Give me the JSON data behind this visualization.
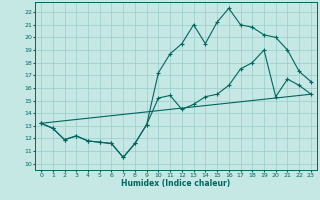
{
  "bg_color": "#c5e8e4",
  "line_color": "#006660",
  "grid_color": "#99cccc",
  "xlabel": "Humidex (Indice chaleur)",
  "xlim": [
    -0.5,
    23.5
  ],
  "ylim": [
    9.5,
    22.8
  ],
  "xticks": [
    0,
    1,
    2,
    3,
    4,
    5,
    6,
    7,
    8,
    9,
    10,
    11,
    12,
    13,
    14,
    15,
    16,
    17,
    18,
    19,
    20,
    21,
    22,
    23
  ],
  "yticks": [
    10,
    11,
    12,
    13,
    14,
    15,
    16,
    17,
    18,
    19,
    20,
    21,
    22
  ],
  "line1_x": [
    0,
    1,
    2,
    3,
    4,
    5,
    6,
    7,
    8,
    9,
    10,
    11,
    12,
    13,
    14,
    15,
    16,
    17,
    18,
    19,
    20,
    21,
    22,
    23
  ],
  "line1_y": [
    13.2,
    12.8,
    11.9,
    12.2,
    11.8,
    11.7,
    11.6,
    10.5,
    11.6,
    13.1,
    17.2,
    18.7,
    19.5,
    21.0,
    19.5,
    21.2,
    22.3,
    21.0,
    20.8,
    20.2,
    20.0,
    19.0,
    17.3,
    16.5
  ],
  "line2_x": [
    0,
    1,
    2,
    3,
    4,
    5,
    6,
    7,
    8,
    9,
    10,
    11,
    12,
    13,
    14,
    15,
    16,
    17,
    18,
    19,
    20,
    21,
    22,
    23
  ],
  "line2_y": [
    13.2,
    12.8,
    11.9,
    12.2,
    11.8,
    11.7,
    11.6,
    10.5,
    11.6,
    13.1,
    15.2,
    15.4,
    14.3,
    14.7,
    15.3,
    15.5,
    16.2,
    17.5,
    18.0,
    19.0,
    15.3,
    16.7,
    16.2,
    15.5
  ],
  "line3_x": [
    0,
    23
  ],
  "line3_y": [
    13.2,
    15.5
  ]
}
